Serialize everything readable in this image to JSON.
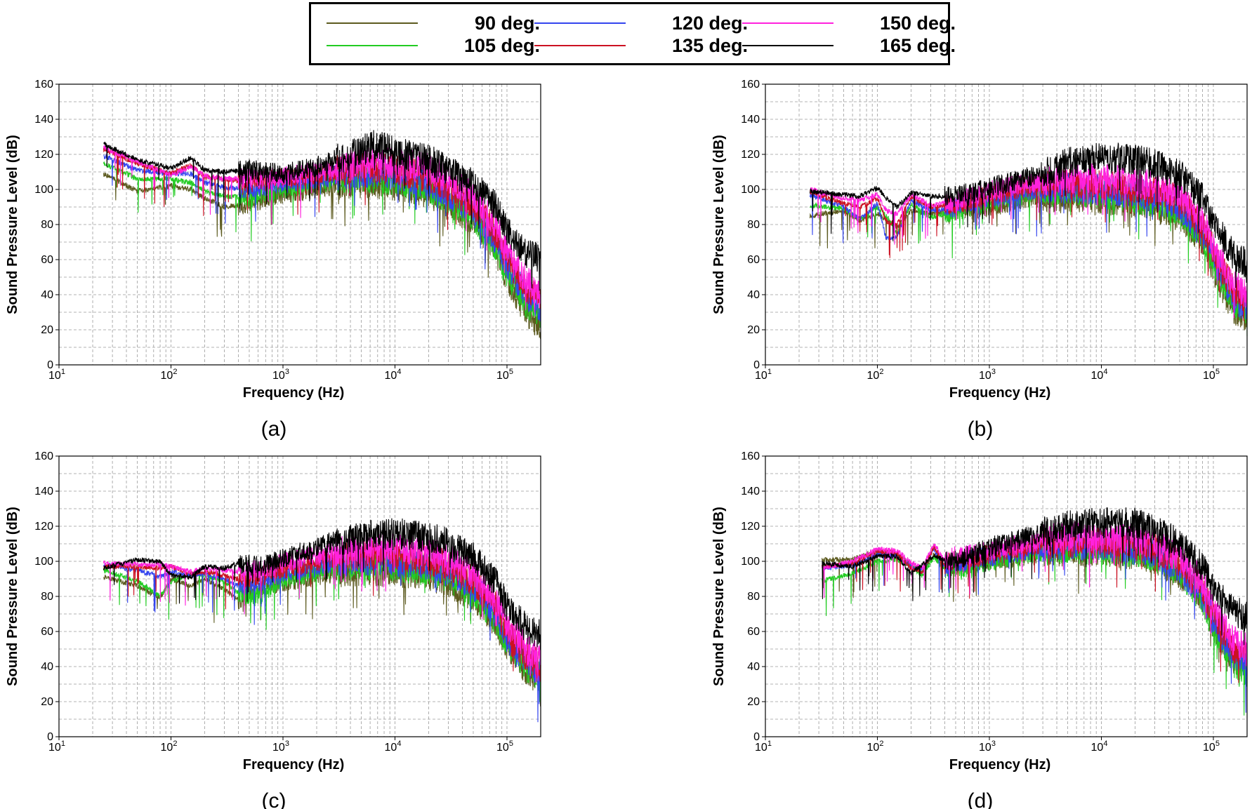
{
  "legend": {
    "entries": [
      {
        "label": "90 deg.",
        "color": "#5c5a1f"
      },
      {
        "label": "105 deg.",
        "color": "#22cc22"
      },
      {
        "label": "120 deg.",
        "color": "#3344ee"
      },
      {
        "label": "135 deg.",
        "color": "#cc1122"
      },
      {
        "label": "150 deg.",
        "color": "#ff22dd"
      },
      {
        "label": "165 deg.",
        "color": "#000000"
      }
    ]
  },
  "chart_data": [
    {
      "type": "line",
      "caption": "(a)",
      "xlabel": "Frequency (Hz)",
      "ylabel": "Sound Pressure Level (dB)",
      "xscale": "log",
      "xlim": [
        10,
        200000
      ],
      "ylim": [
        0,
        160
      ],
      "yticks": [
        0,
        20,
        40,
        60,
        80,
        100,
        120,
        140,
        160
      ],
      "xtick_labels": [
        {
          "base": "10",
          "exp": "1"
        },
        {
          "base": "10",
          "exp": "2"
        },
        {
          "base": "10",
          "exp": "3"
        },
        {
          "base": "10",
          "exp": "4"
        },
        {
          "base": "10",
          "exp": "5"
        }
      ],
      "grid": true,
      "x": [
        25,
        50,
        100,
        150,
        200,
        300,
        500,
        1000,
        2000,
        3000,
        5000,
        7000,
        10000,
        20000,
        30000,
        50000,
        80000,
        100000,
        150000,
        200000
      ],
      "series": [
        {
          "name": "90 deg.",
          "values": [
            109,
            99,
            102,
            100,
            95,
            90,
            92,
            98,
            100,
            103,
            104,
            103,
            102,
            98,
            92,
            82,
            65,
            50,
            30,
            22
          ]
        },
        {
          "name": "105 deg.",
          "values": [
            115,
            106,
            106,
            104,
            99,
            96,
            96,
            101,
            103,
            106,
            107,
            106,
            105,
            101,
            95,
            85,
            68,
            53,
            35,
            28
          ]
        },
        {
          "name": "120 deg.",
          "values": [
            119,
            111,
            109,
            109,
            104,
            101,
            100,
            104,
            106,
            108,
            110,
            109,
            108,
            104,
            98,
            88,
            72,
            58,
            40,
            33
          ]
        },
        {
          "name": "135 deg.",
          "values": [
            123,
            115,
            109,
            114,
            107,
            106,
            104,
            106,
            108,
            111,
            113,
            112,
            111,
            107,
            101,
            92,
            75,
            61,
            44,
            37
          ]
        },
        {
          "name": "150 deg.",
          "values": [
            124,
            116,
            108,
            113,
            108,
            106,
            106,
            107,
            110,
            112,
            115,
            116,
            115,
            112,
            106,
            96,
            79,
            64,
            48,
            40
          ]
        },
        {
          "name": "165 deg.",
          "values": [
            126,
            117,
            112,
            118,
            111,
            110,
            111,
            109,
            113,
            117,
            122,
            126,
            121,
            117,
            111,
            103,
            90,
            76,
            64,
            60
          ]
        }
      ]
    },
    {
      "type": "line",
      "caption": "(b)",
      "xlabel": "Frequency (Hz)",
      "ylabel": "Sound Pressure Level (dB)",
      "xscale": "log",
      "xlim": [
        10,
        200000
      ],
      "ylim": [
        0,
        160
      ],
      "yticks": [
        0,
        20,
        40,
        60,
        80,
        100,
        120,
        140,
        160
      ],
      "xtick_labels": [
        {
          "base": "10",
          "exp": "1"
        },
        {
          "base": "10",
          "exp": "2"
        },
        {
          "base": "10",
          "exp": "3"
        },
        {
          "base": "10",
          "exp": "4"
        },
        {
          "base": "10",
          "exp": "5"
        }
      ],
      "grid": true,
      "x": [
        25,
        50,
        70,
        100,
        120,
        150,
        200,
        300,
        500,
        1000,
        2000,
        3000,
        5000,
        10000,
        20000,
        30000,
        50000,
        80000,
        100000,
        150000,
        200000
      ],
      "series": [
        {
          "name": "90 deg.",
          "values": [
            85,
            88,
            82,
            86,
            83,
            78,
            88,
            86,
            88,
            90,
            95,
            96,
            96,
            95,
            92,
            90,
            84,
            70,
            55,
            32,
            26
          ]
        },
        {
          "name": "105 deg.",
          "values": [
            91,
            89,
            83,
            90,
            85,
            75,
            92,
            84,
            88,
            92,
            97,
            99,
            99,
            98,
            95,
            93,
            87,
            73,
            58,
            35,
            30
          ]
        },
        {
          "name": "120 deg.",
          "values": [
            97,
            90,
            83,
            92,
            72,
            73,
            94,
            88,
            90,
            95,
            99,
            101,
            101,
            100,
            98,
            96,
            90,
            76,
            61,
            38,
            33
          ]
        },
        {
          "name": "135 deg.",
          "values": [
            99,
            92,
            90,
            95,
            82,
            80,
            96,
            90,
            92,
            97,
            101,
            103,
            103,
            103,
            101,
            99,
            94,
            80,
            65,
            43,
            36
          ]
        },
        {
          "name": "150 deg.",
          "values": [
            100,
            95,
            94,
            97,
            88,
            86,
            97,
            91,
            93,
            99,
            103,
            105,
            106,
            106,
            104,
            102,
            97,
            83,
            68,
            47,
            40
          ]
        },
        {
          "name": "165 deg.",
          "values": [
            99,
            97,
            96,
            101,
            95,
            90,
            98,
            96,
            96,
            101,
            106,
            110,
            115,
            118,
            117,
            114,
            108,
            95,
            82,
            63,
            58
          ]
        }
      ]
    },
    {
      "type": "line",
      "caption": "(c)",
      "xlabel": "Frequency (Hz)",
      "ylabel": "Sound Pressure Level (dB)",
      "xscale": "log",
      "xlim": [
        10,
        200000
      ],
      "ylim": [
        0,
        160
      ],
      "yticks": [
        0,
        20,
        40,
        60,
        80,
        100,
        120,
        140,
        160
      ],
      "xtick_labels": [
        {
          "base": "10",
          "exp": "1"
        },
        {
          "base": "10",
          "exp": "2"
        },
        {
          "base": "10",
          "exp": "3"
        },
        {
          "base": "10",
          "exp": "4"
        },
        {
          "base": "10",
          "exp": "5"
        }
      ],
      "grid": true,
      "x": [
        25,
        50,
        80,
        100,
        150,
        200,
        300,
        400,
        600,
        1000,
        2000,
        3000,
        5000,
        10000,
        20000,
        30000,
        50000,
        80000,
        100000,
        150000,
        200000
      ],
      "series": [
        {
          "name": "90 deg.",
          "values": [
            91,
            86,
            79,
            90,
            86,
            90,
            84,
            78,
            86,
            88,
            92,
            94,
            95,
            94,
            92,
            88,
            80,
            65,
            52,
            38,
            32
          ]
        },
        {
          "name": "105 deg.",
          "values": [
            95,
            89,
            80,
            88,
            93,
            92,
            88,
            82,
            80,
            90,
            94,
            97,
            98,
            97,
            95,
            91,
            82,
            67,
            54,
            40,
            34
          ]
        },
        {
          "name": "120 deg.",
          "values": [
            98,
            95,
            91,
            94,
            92,
            93,
            90,
            86,
            88,
            93,
            97,
            100,
            101,
            100,
            98,
            94,
            86,
            70,
            57,
            43,
            36
          ]
        },
        {
          "name": "135 deg.",
          "values": [
            97,
            97,
            96,
            97,
            93,
            94,
            92,
            90,
            91,
            96,
            100,
            103,
            104,
            103,
            101,
            97,
            89,
            74,
            60,
            46,
            40
          ]
        },
        {
          "name": "150 deg.",
          "values": [
            99,
            98,
            98,
            97,
            94,
            96,
            95,
            94,
            95,
            99,
            103,
            106,
            107,
            107,
            105,
            101,
            93,
            78,
            64,
            50,
            43
          ]
        },
        {
          "name": "165 deg.",
          "values": [
            96,
            101,
            100,
            92,
            91,
            97,
            96,
            99,
            97,
            102,
            108,
            112,
            114,
            116,
            114,
            110,
            102,
            88,
            74,
            62,
            58
          ]
        }
      ]
    },
    {
      "type": "line",
      "caption": "(d)",
      "xlabel": "Frequency (Hz)",
      "ylabel": "Sound Pressure Level (dB)",
      "xscale": "log",
      "xlim": [
        10,
        200000
      ],
      "ylim": [
        0,
        160
      ],
      "yticks": [
        0,
        20,
        40,
        60,
        80,
        100,
        120,
        140,
        160
      ],
      "xtick_labels": [
        {
          "base": "10",
          "exp": "1"
        },
        {
          "base": "10",
          "exp": "2"
        },
        {
          "base": "10",
          "exp": "3"
        },
        {
          "base": "10",
          "exp": "4"
        },
        {
          "base": "10",
          "exp": "5"
        }
      ],
      "grid": true,
      "x": [
        32,
        60,
        100,
        150,
        200,
        250,
        320,
        400,
        500,
        700,
        1000,
        2000,
        3000,
        5000,
        10000,
        20000,
        30000,
        50000,
        80000,
        100000,
        150000,
        200000
      ],
      "series": [
        {
          "name": "90 deg.",
          "values": [
            101,
            101,
            106,
            104,
            98,
            93,
            104,
            97,
            98,
            100,
            101,
            103,
            105,
            106,
            106,
            104,
            101,
            93,
            78,
            63,
            45,
            38
          ]
        },
        {
          "name": "105 deg.",
          "values": [
            89,
            93,
            100,
            101,
            97,
            92,
            102,
            96,
            97,
            96,
            100,
            104,
            106,
            107,
            107,
            105,
            102,
            94,
            79,
            62,
            44,
            36
          ]
        },
        {
          "name": "120 deg.",
          "values": [
            96,
            98,
            104,
            103,
            97,
            95,
            107,
            97,
            99,
            101,
            103,
            106,
            108,
            109,
            109,
            107,
            104,
            96,
            81,
            66,
            48,
            42
          ]
        },
        {
          "name": "135 deg.",
          "values": [
            97,
            99,
            106,
            105,
            96,
            94,
            108,
            98,
            101,
            102,
            104,
            108,
            110,
            111,
            111,
            110,
            107,
            99,
            84,
            69,
            51,
            45
          ]
        },
        {
          "name": "150 deg.",
          "values": [
            96,
            100,
            107,
            106,
            99,
            96,
            110,
            100,
            103,
            104,
            106,
            110,
            112,
            114,
            114,
            113,
            110,
            102,
            88,
            72,
            55,
            50
          ]
        },
        {
          "name": "165 deg.",
          "values": [
            99,
            97,
            103,
            103,
            93,
            98,
            103,
            101,
            100,
            104,
            108,
            113,
            117,
            120,
            122,
            122,
            118,
            110,
            97,
            84,
            72,
            68
          ]
        }
      ]
    }
  ]
}
